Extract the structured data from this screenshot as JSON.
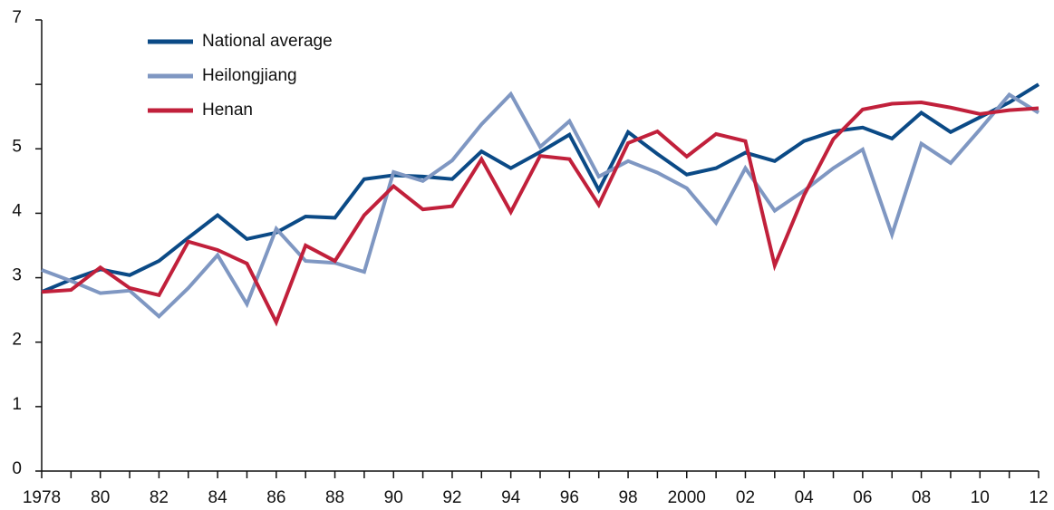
{
  "chart_data": {
    "type": "line",
    "categories": [
      "1978",
      null,
      "80",
      null,
      "82",
      null,
      "84",
      null,
      "86",
      null,
      "88",
      null,
      "90",
      null,
      "92",
      null,
      "94",
      null,
      "96",
      null,
      "98",
      null,
      "2000",
      null,
      "02",
      null,
      "04",
      null,
      "06",
      null,
      "08",
      null,
      "10",
      null,
      "12"
    ],
    "series": [
      {
        "name": "National average",
        "color": "#0b4a86",
        "values": [
          2.78,
          2.97,
          3.13,
          3.04,
          3.26,
          3.62,
          3.97,
          3.6,
          3.7,
          3.95,
          3.93,
          4.53,
          4.59,
          4.57,
          4.53,
          4.96,
          4.7,
          4.95,
          5.22,
          4.36,
          5.26,
          4.92,
          4.6,
          4.7,
          4.94,
          4.81,
          5.12,
          5.27,
          5.33,
          5.16,
          5.56,
          5.26,
          5.49,
          5.72,
          6.0
        ]
      },
      {
        "name": "Heilongjiang",
        "color": "#7f97c2",
        "values": [
          3.12,
          2.95,
          2.76,
          2.8,
          2.4,
          2.84,
          3.35,
          2.59,
          3.76,
          3.26,
          3.23,
          3.09,
          4.64,
          4.5,
          4.82,
          5.38,
          5.85,
          5.03,
          5.43,
          4.57,
          4.81,
          4.63,
          4.39,
          3.85,
          4.7,
          4.04,
          4.35,
          4.7,
          4.99,
          3.67,
          5.08,
          4.78,
          5.3,
          5.84,
          5.56
        ]
      },
      {
        "name": "Henan",
        "color": "#c1203b",
        "values": [
          2.78,
          2.81,
          3.16,
          2.84,
          2.73,
          3.56,
          3.43,
          3.22,
          2.31,
          3.5,
          3.26,
          3.97,
          4.42,
          4.06,
          4.11,
          4.84,
          4.02,
          4.89,
          4.84,
          4.13,
          5.09,
          5.27,
          4.88,
          5.23,
          5.12,
          3.19,
          4.28,
          5.15,
          5.61,
          5.7,
          5.72,
          5.64,
          5.54,
          5.6,
          5.63
        ]
      }
    ],
    "ylim": [
      0,
      7
    ],
    "yticks": [
      0,
      1,
      2,
      3,
      4,
      5,
      {
        "value": 6,
        "label": null
      },
      7
    ],
    "legend": "upper left"
  }
}
